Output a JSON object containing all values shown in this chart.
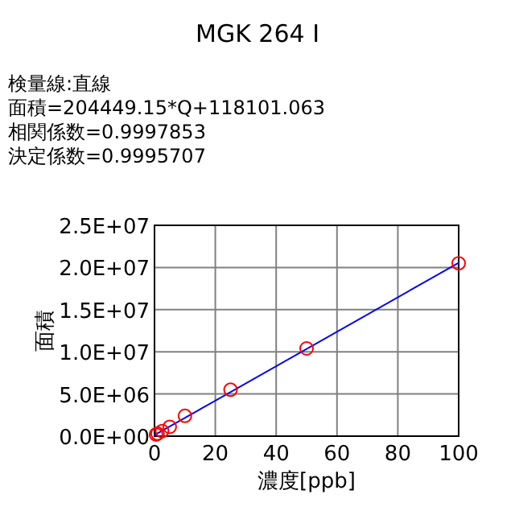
{
  "chart_data": {
    "type": "scatter",
    "title": "MGK 264 Ⅰ",
    "annotations": [
      "検量線:直線",
      "面積=204449.15*Q+118101.063",
      "相関係数=0.9997853",
      "決定係数=0.9995707"
    ],
    "xlabel": "濃度[ppb]",
    "ylabel": "面積",
    "series": [
      {
        "color": "#ff0000",
        "marker": "circle",
        "x": [
          0.5,
          1,
          2.5,
          5,
          10,
          25,
          50,
          100
        ],
        "values": [
          200000,
          300000,
          600000,
          1100000,
          2400000,
          5500000,
          10400000,
          20500000
        ]
      },
      {
        "type": "line",
        "color": "#0000ff",
        "marker": "none",
        "x": [
          0,
          100
        ],
        "values": [
          120000,
          20560000
        ]
      }
    ],
    "xlim": [
      0,
      100
    ],
    "xticks": [
      0,
      20,
      40,
      60,
      80,
      100
    ],
    "ylim": [
      0,
      25000000
    ],
    "yticks": [
      {
        "value": 0,
        "label": "0.0E+00"
      },
      {
        "value": 5000000,
        "label": "5.0E+06"
      },
      {
        "value": 10000000,
        "label": "1.0E+07"
      },
      {
        "value": 15000000,
        "label": "1.5E+07"
      },
      {
        "value": 20000000,
        "label": "2.0E+07"
      },
      {
        "value": 25000000,
        "label": "2.5E+07"
      }
    ],
    "grid": true
  }
}
